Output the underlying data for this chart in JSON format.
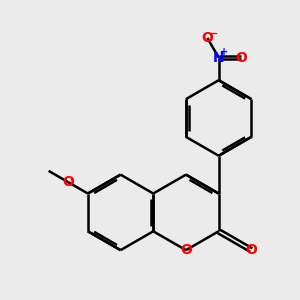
{
  "bg_color": "#ebebeb",
  "bond_color": "#000000",
  "bond_width": 1.8,
  "O_color": "#ff0000",
  "N_color": "#0000ff",
  "font_size": 10,
  "fig_size": [
    3.0,
    3.0
  ],
  "dpi": 100,
  "xlim": [
    0,
    10
  ],
  "ylim": [
    0,
    10
  ]
}
